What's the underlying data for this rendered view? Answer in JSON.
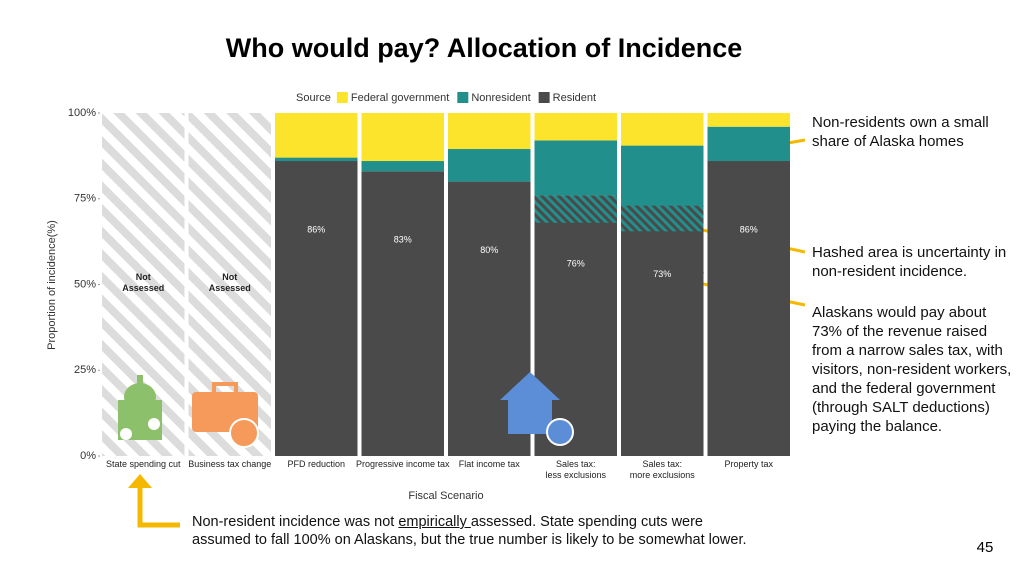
{
  "chart_data": {
    "type": "stacked_bar",
    "title": "Who would pay? Allocation of Incidence",
    "legend_title": "Source",
    "categories": [
      "State spending cut",
      "Business tax change",
      "PFD reduction",
      "Progressive income tax",
      "Flat income tax",
      "Sales tax:\nless exclusions",
      "Sales tax:\nmore exclusions",
      "Property tax"
    ],
    "series": [
      {
        "name": "Federal government",
        "color": "#fce42c",
        "values": [
          null,
          null,
          13,
          14,
          10.5,
          8,
          9.5,
          4
        ]
      },
      {
        "name": "Nonresident",
        "color": "#21908d",
        "values": [
          null,
          null,
          1,
          3,
          9.5,
          16,
          17.5,
          10
        ]
      },
      {
        "name": "Resident",
        "color": "#4a4a4a",
        "values": [
          null,
          null,
          86,
          83,
          80,
          76,
          73,
          86
        ],
        "value_labels": [
          null,
          null,
          "86%",
          "83%",
          "80%",
          "76%",
          "73%",
          "86%"
        ]
      }
    ],
    "resident_uncertainty": [
      null,
      null,
      null,
      null,
      null,
      8,
      7.5,
      null
    ],
    "not_assessed": [
      "Not\nAssessed",
      "Not\nAssessed"
    ],
    "ylabel": "Proportion of incidence(%)",
    "xlabel": "Fiscal Scenario",
    "ylim": [
      0,
      100
    ],
    "yticks": [
      {
        "value": 0,
        "label": "0%"
      },
      {
        "value": 25,
        "label": "25%"
      },
      {
        "value": 50,
        "label": "50%"
      },
      {
        "value": 75,
        "label": "75%"
      },
      {
        "value": 100,
        "label": "100%"
      }
    ],
    "annotations": [
      "Non-residents own a small share of Alaska homes",
      "Hashed area is uncertainty in non-resident incidence.",
      "Alaskans would pay about 73% of the revenue raised from a narrow sales tax, with visitors, non-resident workers, and the federal government (through SALT deductions) paying the balance."
    ],
    "footnote": {
      "before": "Non-resident incidence was not ",
      "underlined": "empirically ",
      "after": "assessed. State spending cuts were assumed to fall 100% on Alaskans, but the true number is likely to be somewhat lower."
    },
    "page_number": "45"
  }
}
